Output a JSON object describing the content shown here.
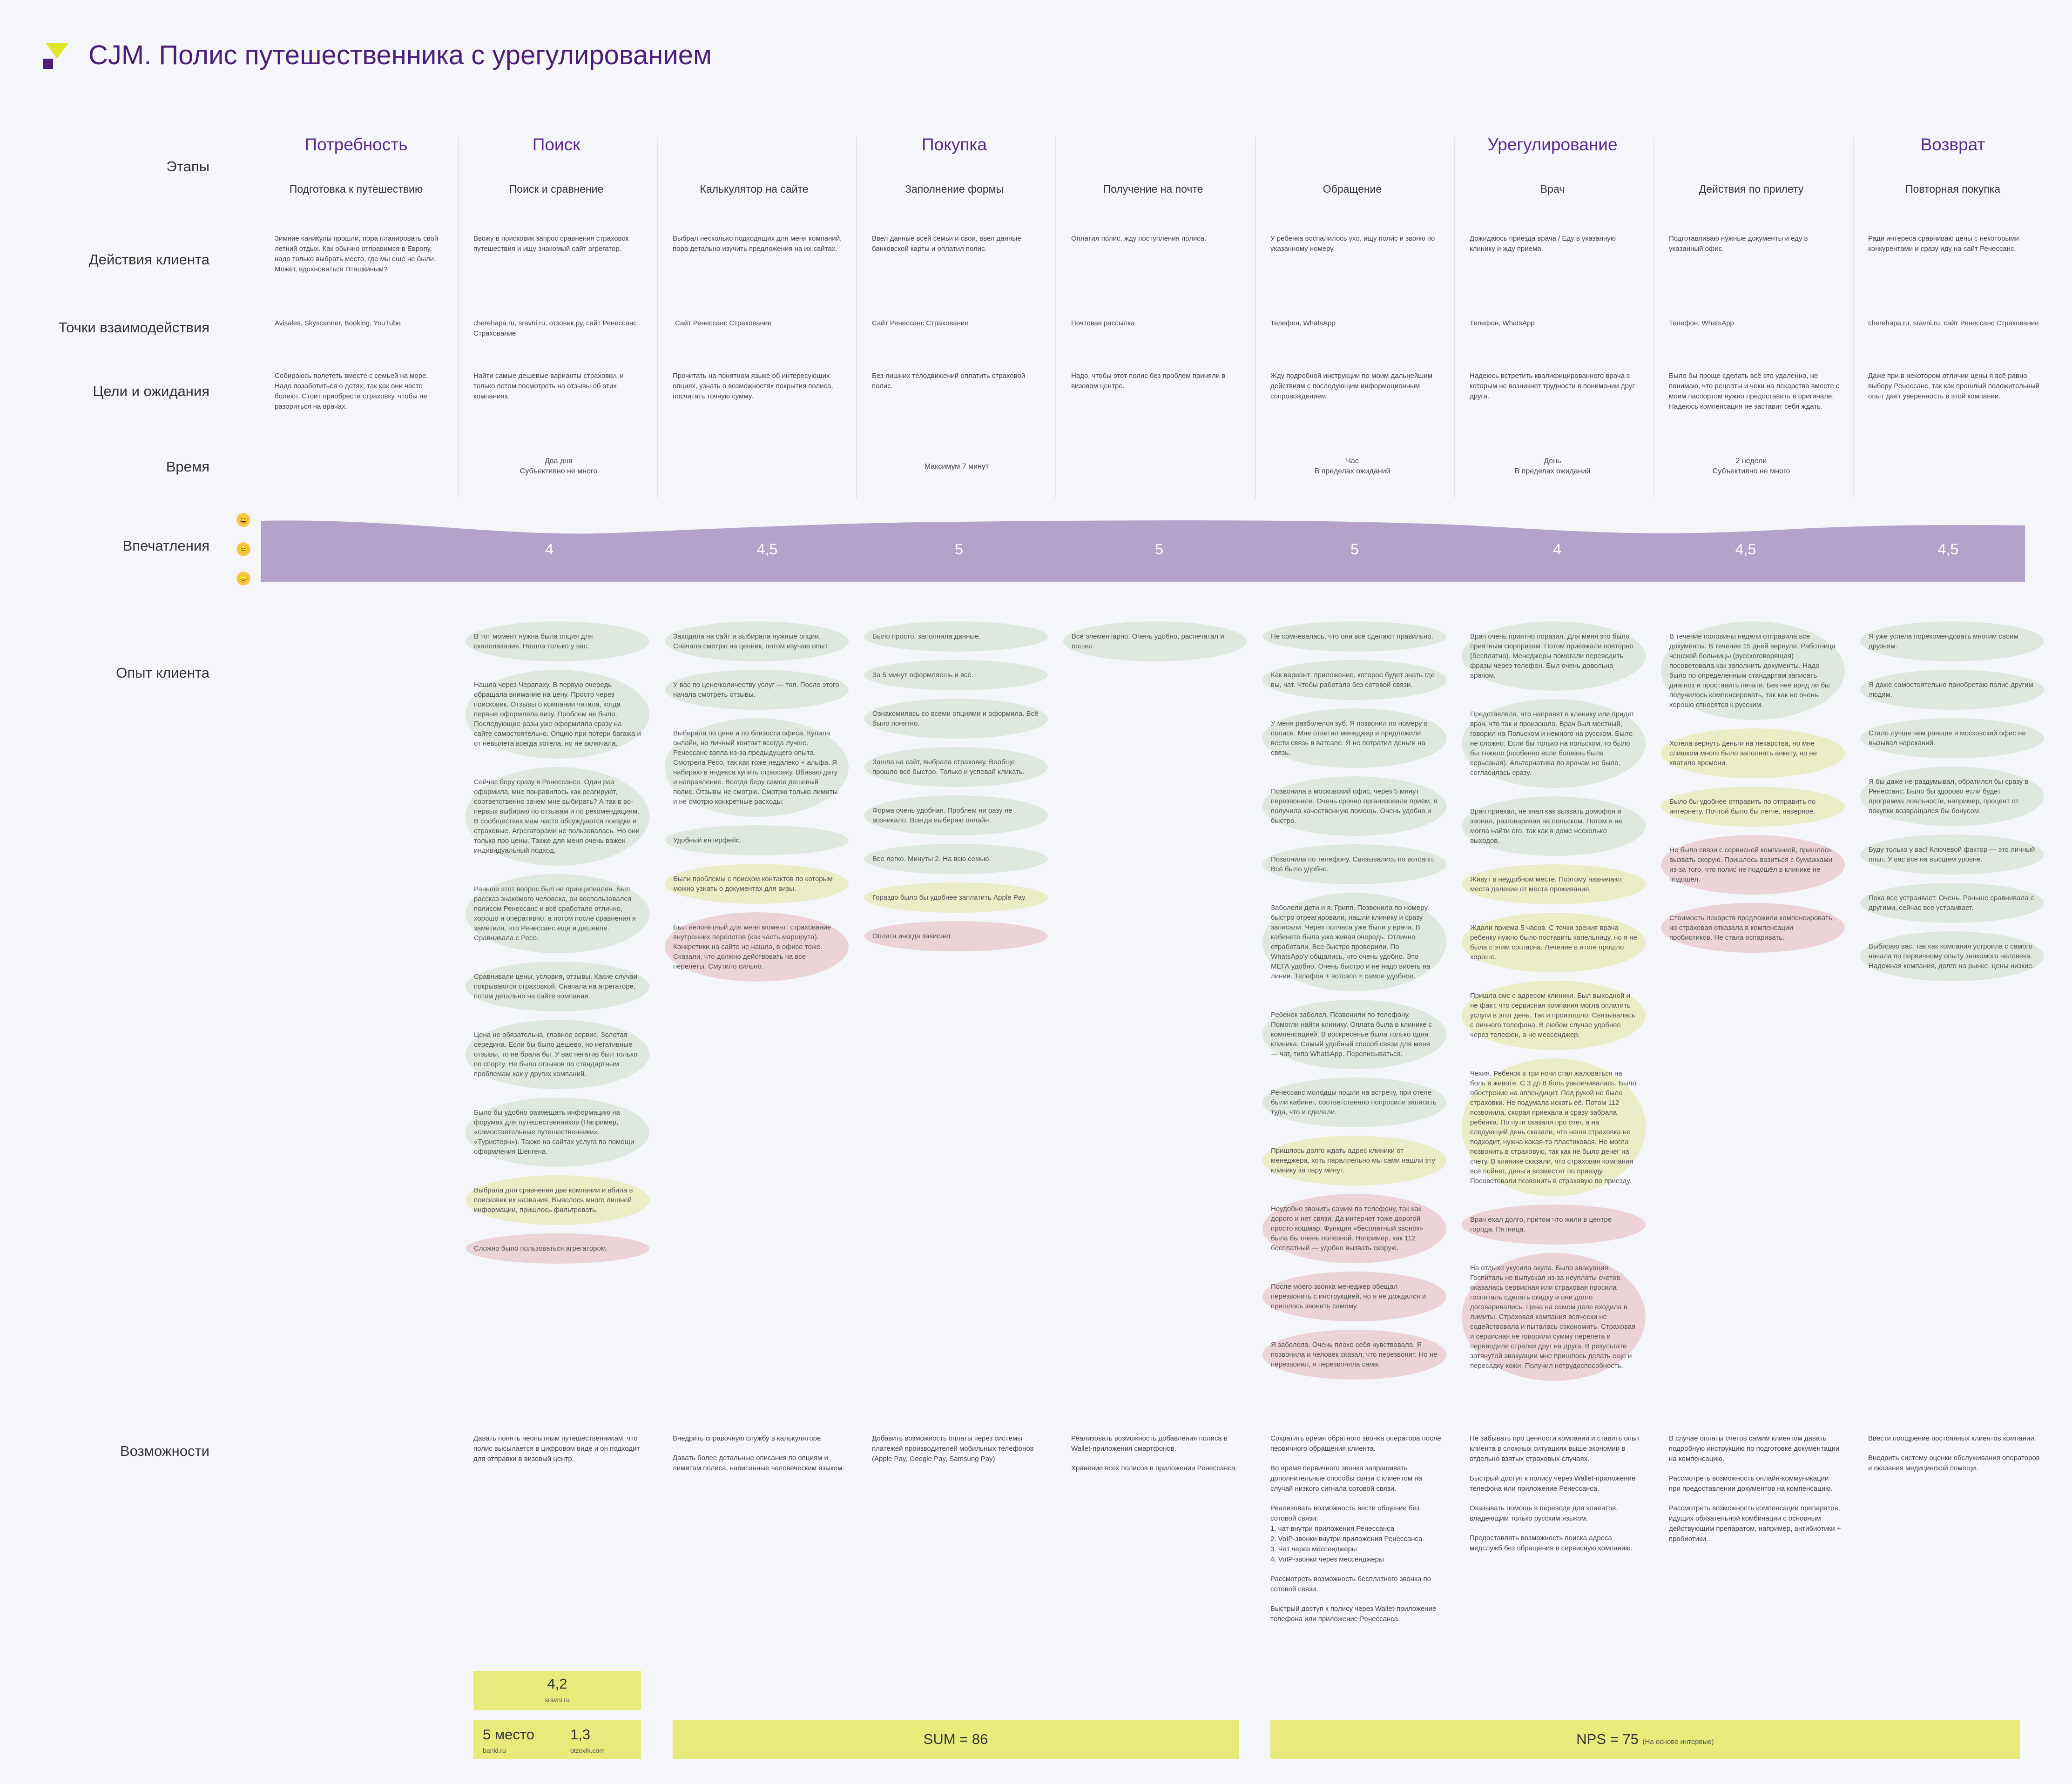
{
  "title": "CJM. Полис путешественника с урегулированием",
  "row_labels": {
    "stages": "Этапы",
    "actions": "Действия клиента",
    "touchpoints": "Точки взаимодействия",
    "goals": "Цели и ожидания",
    "time": "Время",
    "impressions": "Впечатления",
    "experience": "Опыт клиента",
    "opportunities": "Возможности"
  },
  "stages": [
    "Потребность",
    "Поиск",
    "Покупка",
    "Урегулирование",
    "Возврат"
  ],
  "steps": [
    {
      "name": "Подготовка к путешествию",
      "action": "Зимние каникулы прошли, пора планировать свой летний отдых. Как обычно отправимся в Европу, надо только выбрать место, где мы еще не были. Может, вдохновиться Пташкиным?",
      "touch": "Avisales, Skyscanner, Booking, YouTube",
      "goal": "Собираюсь полететь вместе с семьей на море. Надо позаботиться о детях, так как они часто болеют. Стоит приобрести страховку, чтобы не разориться на врачах.",
      "time": "",
      "score": "4"
    },
    {
      "name": "Поиск и сравнение",
      "action": "Ввожу в поисковик запрос сравнения страховок путешествия и ищу знакомый сайт агрегатор.",
      "touch": "cherehapa.ru, sravni.ru, отзовик.ру, сайт Ренессанс Страхование",
      "goal": "Найти самые дешевые варианты страховки, и только потом посмотреть на отзывы об этих компаниях.",
      "time": "Два дня\nСубъективно не много",
      "score": ""
    },
    {
      "name": "Калькулятор на сайте",
      "action": "Выбрал несколько подходящих для меня компаний, пора детально изучить предложения на их сайтах.",
      "touch": "Сайт Ренессанс Страхование",
      "goal": "Прочитать на понятном языке об интересующих опциях, узнать о возможностях покрытия полиса, посчитать точную сумму.",
      "time": "",
      "score": "4,5"
    },
    {
      "name": "Заполнение формы",
      "action": "Ввел данные всей семьи и свои, ввел данные банковской карты и оплатил полис.",
      "touch": "Сайт Ренессанс Страхование",
      "goal": "Без лишних телодвижений оплатить страховой полис.",
      "time": "Максимум 7 минут",
      "score": "5"
    },
    {
      "name": "Получение на почте",
      "action": "Оплатил полис, жду поступления полиса.",
      "touch": "Почтовая рассылка",
      "goal": "Надо, чтобы этот полис без проблем приняли в визовом центре.",
      "time": "",
      "score": "5"
    },
    {
      "name": "Обращение",
      "action": "У ребенка воспалилось ухо, ищу полис и звоню по указанному номеру.",
      "touch": "Телефон, WhatsApp",
      "goal": "Жду подробной инструкции по моим дальнейшим действиям с последующим информационным сопровождением.",
      "time": "Час\nВ пределах ожиданий",
      "score": "5"
    },
    {
      "name": "Врач",
      "action": "Дожидаюсь приезда врача / Еду в указанную клинику и жду приема.",
      "touch": "Телефон, WhatsApp",
      "goal": "Надеюсь встретить квалифицированного врача с которым не возникнет трудности в понимании друг друга.",
      "time": "День\nВ пределах ожиданий",
      "score": "4"
    },
    {
      "name": "Действия по прилету",
      "action": "Подготавливаю нужные документы и еду в указанный офис.",
      "touch": "Телефон, WhatsApp",
      "goal": "Было бы проще сделать всё это удаленно, не понимаю, что рецепты и чеки на лекарства вместе с моим паспортом нужно предоставить в оригинале. Надеюсь компенсация не заставит себя ждать.",
      "time": "2 недели\nСубъективно не много",
      "score": "4,5"
    },
    {
      "name": "Повторная покупка",
      "action": "Ради интереса сравниваю цены с некоторыми конкурентами и сразу иду на сайт Ренессанс.",
      "touch": "cherehapa.ru, sravni.ru, сайт Ренессанс Страхование",
      "goal": "Даже при в некотором отличии цены я всё равно выберу Ренессанс, так как прошлый положительный опыт даёт уверенность в этой компании.",
      "time": "",
      "score": "4,5"
    }
  ],
  "emoji": [
    "😀",
    "😐",
    "😞"
  ],
  "colors": {
    "accent": "#5a2a8c",
    "wave": "#b3a2c9",
    "green": "#dfe8de",
    "yellow": "#eaedc6",
    "pink": "#ecd3d8",
    "lime": "#e6eb7c"
  },
  "experience": [
    [
      {
        "c": "g",
        "t": "В тот момент нужна была опция для скалолазания. Нашла только у вас."
      },
      {
        "c": "g",
        "t": "Нашла через Черапаху. В первую очередь обращала внимание на цену. Просто через поисковик. Отзывы о компании читала, когда первые оформляла визу. Проблем не было. Последующие разы уже оформляла сразу на сайте самостоятельно. Опцию при потери багажа и от невылета всегда хотела, но не включала."
      },
      {
        "c": "g",
        "t": "Сейчас беру сразу в Ренессансе. Один раз оформила, мне понравилось как реагируют, соответственно зачем мне выбирать? А так в во-первых выбираю по отзывам и по рекомендациям. В сообществах мам часто обсуждаются поездки и страховые. Агрегаторами не пользовалась. Но они только про цены. Также для меня очень важен индивидуальный подход."
      },
      {
        "c": "g",
        "t": "Раньше этот вопрос был не принципиален. Был рассказ знакомого человека, он воспользовался полисом Ренессанс и всё сработало отлично, хорошо и оперативно, а потом после сравнения я заметила, что Ренессанс еще и дешевле. Сравнивала с Ресо."
      },
      {
        "c": "g",
        "t": "Сравнивали цены, условия, отзывы. Какие случаи покрываются страховкой. Сначала на агрегаторе, потом детально на сайте компании."
      },
      {
        "c": "g",
        "t": "Цена не обязательна, главное сервис. Золотая середина. Если бы было дешево, но негативные отзывы, то не брала бы. У вас негатив был только по спорту. Не было отзывов по стандартным проблемам как у других компаний."
      },
      {
        "c": "g",
        "t": "Было бы удобно размещать информацию на форумах для путешественников (Например, «самостоятельные путешественники», «Туристерн»). Также на сайтах услуга по помощи оформления Шенгена."
      },
      {
        "c": "y",
        "t": "Выбрала для сравнения две компании и вбила в поисковик их названия. Вывелось много лишней информации, пришлось фильтровать."
      },
      {
        "c": "p",
        "t": "Сложно было пользоваться агрегатором."
      }
    ],
    [
      {
        "c": "g",
        "t": "Заходила на сайт и выбирала нужные опции. Сначала смотрю на ценник, потом изучаю опыт."
      },
      {
        "c": "g",
        "t": "У вас по цене/количеству услуг — топ. После этого начала смотреть отзывы."
      },
      {
        "c": "g",
        "t": "Выбирала по цене и по близости офиса. Купила онлайн, но личный контакт всегда лучше. Ренессанс взяла из-за предыдущего опыта. Смотрела Ресо, так как тоже недалеко + альфа. Я набираю в яндекса купить страховку. Вбиваю дату и направление. Всегда беру самое дешевый полис. Отзывы не смотрю. Смотрю только лимиты и не смотрю конкретные расходы."
      },
      {
        "c": "g",
        "t": "Удобный интерфейс."
      },
      {
        "c": "y",
        "t": "Были проблемы с поиском контактов по которым можно узнать о документах для визы."
      },
      {
        "c": "p",
        "t": "Был непонятный для меня момент: страхование внутренних перелетов (как часть маршрута). Конкретики на сайте не нашла, в офисе тоже. Сказали, что должно действовать на все перелеты. Смутило сильно."
      }
    ],
    [
      {
        "c": "g",
        "t": "Было просто, заполнила данные."
      },
      {
        "c": "g",
        "t": "За 5 минут оформляешь и всё."
      },
      {
        "c": "g",
        "t": "Ознакомилась со всеми опциями и оформила. Всё было понятно."
      },
      {
        "c": "g",
        "t": "Зашла на сайт, выбрала страховку. Вообще прошло всё быстро. Только и успевай кликать."
      },
      {
        "c": "g",
        "t": "Форма очень удобная. Проблем ни разу не возникало. Всегда выбираю онлайн."
      },
      {
        "c": "g",
        "t": "Все легко. Минуты 2. На всю семью."
      },
      {
        "c": "y",
        "t": "Гораздо было бы удобнее заплатить Apple Pay."
      },
      {
        "c": "p",
        "t": "Оплата иногда зависает."
      }
    ],
    [
      {
        "c": "g",
        "t": "Всё элементарно. Очень удобно, распечатал и пошел."
      }
    ],
    [
      {
        "c": "g",
        "t": "Не сомневалась, что они всё сделают правильно."
      },
      {
        "c": "g",
        "t": "Как вариант: приложение, которое будет знать где вы, чат. Чтобы работало без сотовой связи."
      },
      {
        "c": "g",
        "t": "У меня разболелся зуб. Я позвонил по номеру в полисе. Мне ответил менеджер и предложили вести связь в ватсапе. Я не потратил деньги на связь."
      },
      {
        "c": "g",
        "t": "Позвонила в московский офис, через 5 минут перезвонили. Очень срочно организовали приём, я получила качественную помощь. Очень удобно и быстро."
      },
      {
        "c": "g",
        "t": "Позвонила по телефону. Связывались по вотсапп. Всё было удобно."
      },
      {
        "c": "g",
        "t": "Заболели дети и я. Грипп. Позвонила по номеру, быстро отреагировали, нашли клинику и сразу записали. Через полчаса уже были у врача. В кабинете была уже живая очередь. Отлично отработали. Все быстро проверили. По WhatsApp'у общались, что очень удобно. Это МЕГА удобно. Очень быстро и не надо висеть на линии. Телефон + вотсапп = самое удобное."
      },
      {
        "c": "g",
        "t": "Ребенок заболел. Позвонили по телефону. Помогли найти клинику. Оплата была в клинике с компенсацией. В воскресенье была только одна клиника. Самый удобный способ связи для меня — чат, типа WhatsApp. Переписываться."
      },
      {
        "c": "g",
        "t": "Ренессанс молодцы пошли на встречу, при отеле были кабинет, соответственно попросили записать туда, что и сделали."
      },
      {
        "c": "y",
        "t": "Пришлось долго ждать адрес клиники от менеджера, хоть параллельно мы сами нашли эту клинику за пару минут."
      },
      {
        "c": "p",
        "t": "Неудобно звонить самим по телефону, так как дорого и нет связи. Да интернет тоже дорогой просто кошмар. Функция «бесплатный звонок» была бы очень полезной. Например, как 112 бесплатный — удобно вызвать скорую."
      },
      {
        "c": "p",
        "t": "После моего звонка менеджер обещал перезвонить с инструкцией, но я не дождался и пришлось звонить самому."
      },
      {
        "c": "p",
        "t": "Я заболела. Очень плохо себя чувствовала. Я позвонила и человек сказал, что перезвонит. Но не перезвонил, я перезвонила сама."
      }
    ],
    [
      {
        "c": "g",
        "t": "Врач очень приятно поразил. Для меня это было приятным сюрпризом. Потом приезжали повторно (бесплатно). Менеджеры помогали переводить фразы через телефон. Был очень довольна врачом."
      },
      {
        "c": "g",
        "t": "Представляла, что направят в клинику или придет врач, что так и произошло. Врач был местный, говорил на Польском и немного на русском. Было не сложно. Если бы только на польском, то было бы тяжело (особенно если болезнь была серьезная). Альтернатива по врачам не было, согласилась сразу."
      },
      {
        "c": "g",
        "t": "Врач приехал, не знал как вызвать домофон и звонил, разговаривая на польском. Потом я не могла найти его, так как в доме несколько выходов."
      },
      {
        "c": "y",
        "t": "Живут в неудобном месте. Поэтому назначают места далекие от места проживания."
      },
      {
        "c": "y",
        "t": "Ждали приема 5 часов. С точки зрения врача ребенку нужно было поставить капельницу, но я не была с этим согласна. Лечение в итоге прошло хорошо."
      },
      {
        "c": "y",
        "t": "Пришла смс с адресом клиники. Был выходной и не факт, что сервисная компания могла оплатить услуги в этот день. Так и произошло. Связывалась с личного телефона. В любом случае удобнее через телефон, а не мессенджер."
      },
      {
        "c": "y",
        "t": "Чехия. Ребенок в три ночи стал жаловаться на боль в животе. С 3 до 8 боль увеличивалась. Было обострение на аппендицит. Под рукой не было страховки. Не подумала искать её. Потом 112 позвонила, скорая приехала и сразу забрала ребенка. По пути сказали про счет, а на следующий день сказали, что наша страховка не подходит, нужна какая-то пластиковая. Не могла позвонить в страховую, так как не было денег на счету. В клинике сказали, что страховая компания всё пойнет, деньги возместят по приезду. Посоветовали позвонить в страховую по приезду."
      },
      {
        "c": "p",
        "t": "Врач ехал долго, притом что жили в центре города. Пятница."
      },
      {
        "c": "p",
        "t": "На отдыхе укусила акула. Была эвакуация. Госпиталь не выпускал из-за неуплаты счетов, оказалась сервисная или страховая просила госпиталь сделать скидку и они долго договаривались. Цена на самом деле входила в лимиты. Страховая компания всячески не содействовала и пыталась сэкономить. Страховая и сервисная не говорили сумму перелета и переводили стрелки друг на друга. В результате затянутой эвакуации мне пришлось делать еще и пересадку кожи. Получил нетрудоспособность."
      }
    ],
    [
      {
        "c": "g",
        "t": "В течение половины недели отправила все документы. В течение 15 дней вернули. Работница чешской больницы (русскоговорящая) посоветовала как заполнить документы. Надо было по определенным стандартам записать диагноз и проставить печати. Без неё вряд ли бы получилось компенсировать, так как не очень хорошо относятся к русским."
      },
      {
        "c": "y",
        "t": "Хотела вернуть деньги на лекарства, но мне слишком много было заполнять анкету, но не хватило времени."
      },
      {
        "c": "y",
        "t": "Было бы удобнее отправить по отправить по интернету. Почтой было бы легче, наверное."
      },
      {
        "c": "p",
        "t": "Не было связи с сервисной компанией, пришлось вызвать скорую. Пришлось возиться с бумажками из-за того, что полис не подошёл в клинике не подошёл."
      },
      {
        "c": "p",
        "t": "Стоимость лекарств предложили компенсировать, но страховая отказала в компенсации пробиотиков. Не стала оспаривать."
      }
    ],
    [
      {
        "c": "g",
        "t": "Я уже успела порекомендовать многим своим друзьям."
      },
      {
        "c": "g",
        "t": "Я даже самостоятельно приобретаю полис другим людям."
      },
      {
        "c": "g",
        "t": "Стало лучше чем раньше и московский офис не вызывал нареканий."
      },
      {
        "c": "g",
        "t": "Я бы даже не раздумывал, обратился бы сразу в Ренессанс. Было бы здорово если будет программа лояльности, например, процент от покупки возвращался бы бонусом."
      },
      {
        "c": "g",
        "t": "Буду только у вас! Ключевой фактор — это личный опыт. У вас все на высшем уровне."
      },
      {
        "c": "g",
        "t": "Пока все устраивает. Очень. Раньше сравнивала с другими, сейчас все устраивает."
      },
      {
        "c": "g",
        "t": "Выбираю вас, так как компания устроила с самого начала по первичному опыту знакомого человека. Надежная компания, долго на рынке, цены низкие."
      }
    ]
  ],
  "opportunities": [
    [
      "Давать понять неопытным путешественникам, что полис высылается в цифровом виде и он подходит для отправки в визовый центр."
    ],
    [
      "Внедрить справочную службу в калькуляторе.",
      "Давать более детальные описания по опциям и лимитам полиса, написанные человеческим языком."
    ],
    [
      "Добавить возможность оплаты через системы платежей производителей мобильных телефонов (Apple Pay, Google Pay, Samsung Pay)"
    ],
    [
      "Реализовать возможность добавления полиса в Wallet-приложения смартфонов.",
      "Хранение всех полисов в приложении Ренессанса."
    ],
    [
      "Сократить время обратного звонка оператора после первичного обращения клиента.",
      "Во время первичного звонка запрашивать дополнительные способы связи с клиентом на случай низкого сигнала сотовой связи.",
      "Реализовать возможность вести общение без сотовой связи:\n1. чат внутри приложения Ренессанса\n2. VoIP-звонки внутри приложения Ренессанса\n3. Чат через мессенджеры\n4. VoIP-звонки через мессенджеры",
      "Рассмотреть возможность бесплатного звонка по сотовой связи.",
      "Быстрый доступ к полису через Wallet-приложение телефона или приложение Ренессанса."
    ],
    [
      "Не забывать про ценности компании и ставить опыт клиента в сложных ситуациях выше экономии в отдельно взятых страховых случаях.",
      "Быстрый доступ к полису через Wallet-приложение телефона или приложение Ренессанса.",
      "Оказывать помощь в переводе для клиентов, владеющим только русским языком.",
      "Предоставлять возможность поиска адреса медслужб без обращения в сервисную компанию."
    ],
    [
      "В случае оплаты счетов самим клиентом давать подробную инструкцию по подготовке документации на компенсацию.",
      "Рассмотреть возможность онлайн-коммуникации при предоставлении документов на компенсацию.",
      "Рассмотреть возможность компенсации препаратов, идущих обязательной комбинации с основным действующим препаратом, например, антибиотики + пробиотики."
    ],
    [
      "Ввести поощрение постоянных клиентов компании.",
      "Внедрить систему оценки обслуживания операторов и оказания медицинской помощи."
    ]
  ],
  "ratings": {
    "sravni_value": "4,2",
    "sravni_src": "sravni.ru",
    "banki_value": "5 место",
    "banki_src": "banki.ru",
    "otzovik_value": "1,3",
    "otzovik_src": "otzovik.com",
    "sum": "SUM = 86",
    "nps": "NPS = 75",
    "nps_note": "(На основе интервью)"
  }
}
